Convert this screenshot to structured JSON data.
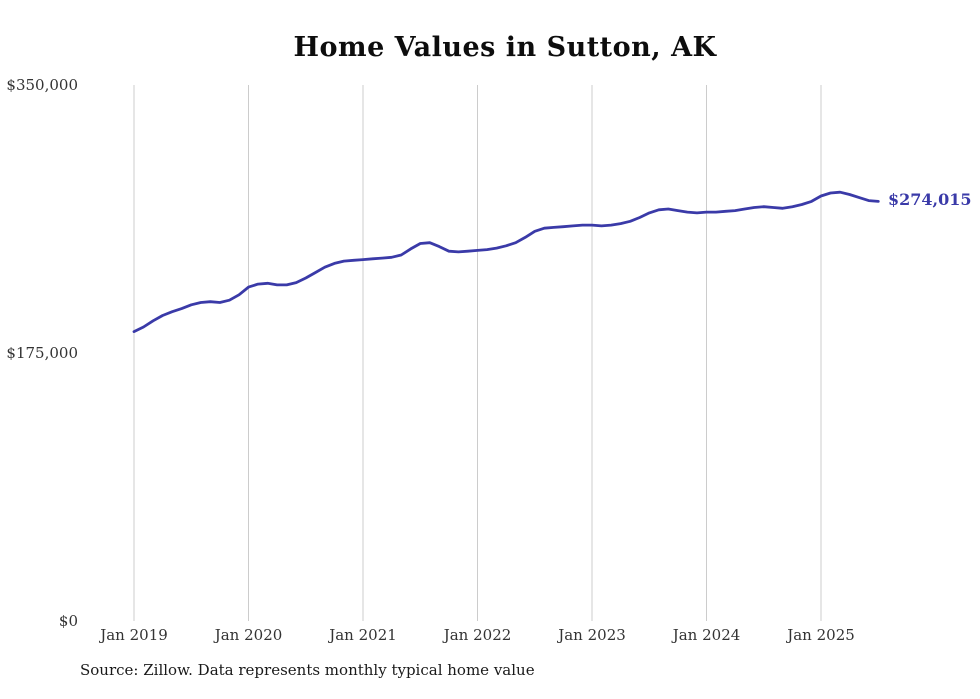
{
  "page": {
    "background_color": "#ffffff",
    "text_color": "#333333"
  },
  "title": "Home Values in Sutton, AK",
  "source_note": "Source: Zillow. Data represents monthly typical home value",
  "chart_data": {
    "type": "line",
    "title": "Home Values in Sutton, AK",
    "xlabel": "",
    "ylabel": "",
    "ylim": [
      0,
      350000
    ],
    "grid": "vertical-only",
    "gridline_color": "#cccccc",
    "legend": "none",
    "y_ticks": [
      {
        "label": "$350,000",
        "value": 350000
      },
      {
        "label": "$175,000",
        "value": 175000
      },
      {
        "label": "$0",
        "value": 0
      }
    ],
    "x_ticks": [
      {
        "label": "Jan 2019",
        "month_index": 0
      },
      {
        "label": "Jan 2020",
        "month_index": 12
      },
      {
        "label": "Jan 2021",
        "month_index": 24
      },
      {
        "label": "Jan 2022",
        "month_index": 36
      },
      {
        "label": "Jan 2023",
        "month_index": 48
      },
      {
        "label": "Jan 2024",
        "month_index": 60
      },
      {
        "label": "Jan 2025",
        "month_index": 72
      }
    ],
    "end_label": "$274,015",
    "end_value": 274015,
    "series": [
      {
        "name": "Monthly typical home value",
        "color": "#3a3aa8",
        "start": "Jan 2019",
        "frequency": "monthly",
        "values": [
          189000,
          192000,
          196000,
          199500,
          202000,
          204000,
          206500,
          208000,
          208500,
          208000,
          209500,
          213000,
          218000,
          220000,
          220500,
          219500,
          219500,
          221000,
          224000,
          227500,
          231000,
          233500,
          235000,
          235500,
          236000,
          236500,
          237000,
          237500,
          239000,
          243000,
          246500,
          247000,
          244500,
          241500,
          241000,
          241500,
          242000,
          242500,
          243500,
          245000,
          247000,
          250500,
          254500,
          256500,
          257000,
          257500,
          258000,
          258500,
          258500,
          258000,
          258500,
          259500,
          261000,
          263500,
          266500,
          268500,
          269000,
          268000,
          267000,
          266500,
          267000,
          267000,
          267500,
          268000,
          269000,
          270000,
          270500,
          270000,
          269500,
          270500,
          272000,
          274000,
          277500,
          279500,
          280000,
          278500,
          276500,
          274500,
          274015
        ]
      }
    ]
  }
}
